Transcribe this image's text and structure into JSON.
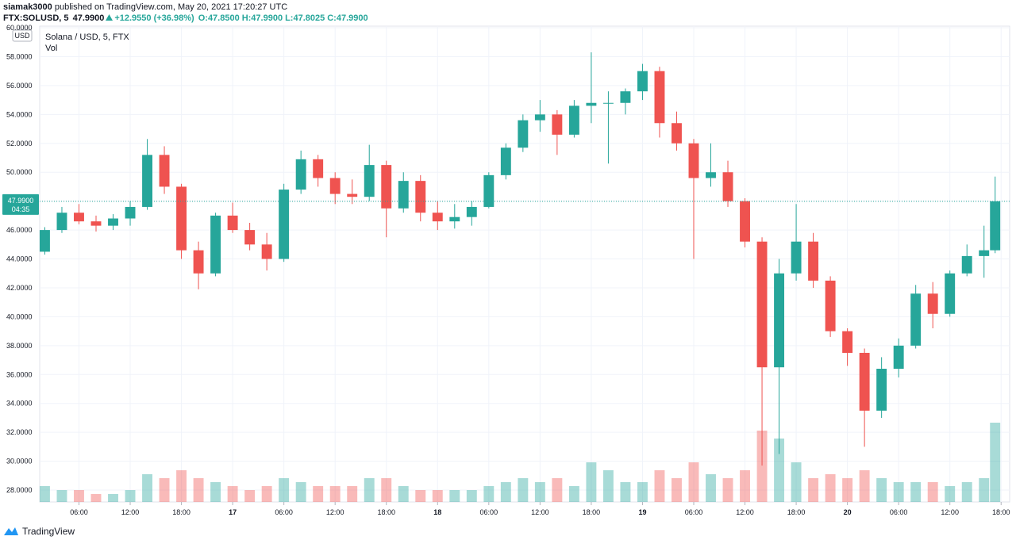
{
  "header": {
    "author": "siamak3000",
    "published": "published on TradingView.com, May 20, 2021 17:20:27 UTC",
    "symbol": "FTX:SOLUSD, 5",
    "price": "47.9900",
    "change": "+12.9550 (+36.98%)",
    "ohlc": [
      "O:47.8500",
      "H:47.9900",
      "L:47.8025",
      "C:47.9900"
    ]
  },
  "footer": {
    "brand": "TradingView"
  },
  "chart_data": {
    "type": "candlestick",
    "title": "Solana / USD, 5, FTX",
    "volume_label": "Vol",
    "currency": "USD",
    "up_color": "#26a69a",
    "down_color": "#ef5350",
    "grid": true,
    "last_price": {
      "value": 47.99,
      "label": "47.9900"
    },
    "countdown": "04:35",
    "xlim": [
      1.4,
      115
    ],
    "ylim": [
      27.18,
      60.11
    ],
    "yticks": [
      {
        "value": 28,
        "label": "28.0000"
      },
      {
        "value": 30,
        "label": "30.0000"
      },
      {
        "value": 32,
        "label": "32.0000"
      },
      {
        "value": 34,
        "label": "34.0000"
      },
      {
        "value": 36,
        "label": "36.0000"
      },
      {
        "value": 38,
        "label": "38.0000"
      },
      {
        "value": 40,
        "label": "40.0000"
      },
      {
        "value": 42,
        "label": "42.0000"
      },
      {
        "value": 44,
        "label": "44.0000"
      },
      {
        "value": 46,
        "label": "46.0000"
      },
      {
        "value": 48,
        "label": "48.0000"
      },
      {
        "value": 50,
        "label": "50.0000"
      },
      {
        "value": 52,
        "label": "52.0000"
      },
      {
        "value": 54,
        "label": "54.0000"
      },
      {
        "value": 56,
        "label": "56.0000"
      },
      {
        "value": 58,
        "label": "58.0000"
      },
      {
        "value": 60,
        "label": "60.0000"
      }
    ],
    "xticks": [
      {
        "value": 6,
        "label": "06:00"
      },
      {
        "value": 12,
        "label": "12:00"
      },
      {
        "value": 18,
        "label": "18:00"
      },
      {
        "value": 24,
        "label": "17"
      },
      {
        "value": 30,
        "label": "06:00"
      },
      {
        "value": 36,
        "label": "12:00"
      },
      {
        "value": 42,
        "label": "18:00"
      },
      {
        "value": 48,
        "label": "18"
      },
      {
        "value": 54,
        "label": "06:00"
      },
      {
        "value": 60,
        "label": "12:00"
      },
      {
        "value": 66,
        "label": "18:00"
      },
      {
        "value": 72,
        "label": "19"
      },
      {
        "value": 78,
        "label": "06:00"
      },
      {
        "value": 84,
        "label": "12:00"
      },
      {
        "value": 90,
        "label": "18:00"
      },
      {
        "value": 96,
        "label": "20"
      },
      {
        "value": 102,
        "label": "06:00"
      },
      {
        "value": 108,
        "label": "12:00"
      },
      {
        "value": 114,
        "label": "18:00"
      }
    ],
    "x": [
      2,
      4,
      6,
      8,
      10,
      12,
      14,
      16,
      18,
      20,
      22,
      24,
      26,
      28,
      30,
      32,
      34,
      36,
      38,
      40,
      42,
      44,
      46,
      48,
      50,
      52,
      54,
      56,
      58,
      60,
      62,
      64,
      66,
      68,
      70,
      72,
      74,
      76,
      78,
      80,
      82,
      84,
      86,
      88,
      90,
      92,
      94,
      96,
      98,
      100,
      102,
      104,
      106,
      108,
      110,
      112,
      113.3
    ],
    "open": [
      44.5,
      46.0,
      47.2,
      46.6,
      46.3,
      46.8,
      47.6,
      51.2,
      49.0,
      44.6,
      43.0,
      47.0,
      46.0,
      45.0,
      44.0,
      48.8,
      50.9,
      49.6,
      48.5,
      48.3,
      50.5,
      47.5,
      49.4,
      47.2,
      46.6,
      46.9,
      47.6,
      49.8,
      51.7,
      53.6,
      54.0,
      52.6,
      54.6,
      54.8,
      54.8,
      55.6,
      57.0,
      53.4,
      52.0,
      49.6,
      50.0,
      48.0,
      45.2,
      36.5,
      43.0,
      45.2,
      42.5,
      39.0,
      37.5,
      33.5,
      36.4,
      38.0,
      41.6,
      40.2,
      43.0,
      44.2,
      44.6
    ],
    "high": [
      46.2,
      47.6,
      47.8,
      47.0,
      47.1,
      48.0,
      52.3,
      51.8,
      49.2,
      45.2,
      47.2,
      47.9,
      46.5,
      45.8,
      49.2,
      51.5,
      51.2,
      50.0,
      49.5,
      51.9,
      50.8,
      50.0,
      49.8,
      48.0,
      47.8,
      48.0,
      50.0,
      52.0,
      54.0,
      55.0,
      54.3,
      55.0,
      58.3,
      55.6,
      55.8,
      57.5,
      57.3,
      54.2,
      52.3,
      52.0,
      50.8,
      48.2,
      45.5,
      44.0,
      47.8,
      45.8,
      42.8,
      39.2,
      37.8,
      37.2,
      38.5,
      42.2,
      42.4,
      43.2,
      45.0,
      46.3,
      49.7
    ],
    "low": [
      44.3,
      45.8,
      46.4,
      45.9,
      46.0,
      46.3,
      47.4,
      48.5,
      44.0,
      41.9,
      42.8,
      45.8,
      44.6,
      43.2,
      43.8,
      48.5,
      49.0,
      47.8,
      47.8,
      48.0,
      45.5,
      47.2,
      46.6,
      46.0,
      46.1,
      46.3,
      47.5,
      49.5,
      51.4,
      52.8,
      51.2,
      52.4,
      53.4,
      50.6,
      54.0,
      55.0,
      52.4,
      51.5,
      44.0,
      49.0,
      47.6,
      44.8,
      29.7,
      30.5,
      42.5,
      42.0,
      38.6,
      36.6,
      31.0,
      33.0,
      35.8,
      37.8,
      39.2,
      40.0,
      42.8,
      42.7,
      44.4
    ],
    "close": [
      46.0,
      47.2,
      46.6,
      46.3,
      46.8,
      47.6,
      51.2,
      49.0,
      44.6,
      43.0,
      47.0,
      46.0,
      45.0,
      44.0,
      48.8,
      50.9,
      49.6,
      48.5,
      48.3,
      50.5,
      47.5,
      49.4,
      47.2,
      46.6,
      46.9,
      47.6,
      49.8,
      51.7,
      53.6,
      54.0,
      52.6,
      54.6,
      54.8,
      54.8,
      55.6,
      57.0,
      53.4,
      52.0,
      49.6,
      50.0,
      48.0,
      45.2,
      36.5,
      43.0,
      45.2,
      42.5,
      39.0,
      37.5,
      33.5,
      36.4,
      38.0,
      41.6,
      40.2,
      43.0,
      44.2,
      44.6,
      47.99
    ],
    "volume": [
      2,
      1.5,
      1.5,
      1,
      1,
      1.5,
      3.5,
      3,
      4,
      3,
      2.5,
      2,
      1.5,
      2,
      3,
      2.5,
      2,
      2,
      2,
      3,
      3,
      2,
      1.5,
      1.5,
      1.5,
      1.5,
      2,
      2.5,
      3,
      2.5,
      3,
      2,
      5,
      4,
      2.5,
      2.5,
      4,
      3,
      5,
      3.5,
      3,
      4,
      9,
      8,
      5,
      3,
      3.5,
      3,
      4,
      3,
      2.5,
      2.5,
      2.5,
      2,
      2.5,
      3,
      10
    ]
  }
}
